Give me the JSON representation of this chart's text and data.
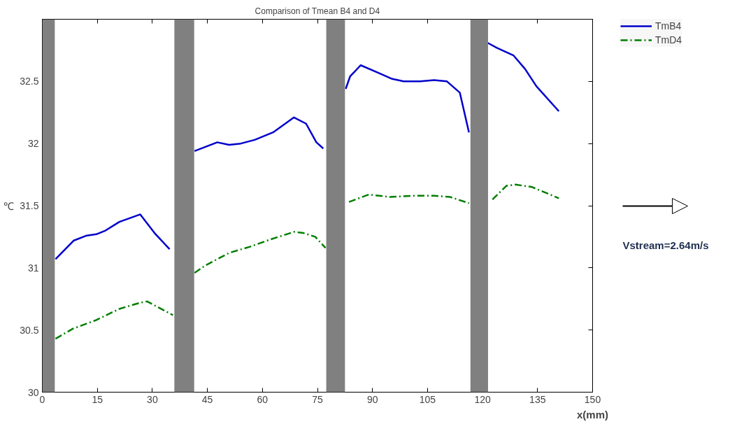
{
  "chart_data": {
    "type": "line",
    "title": "Comparison of Tmean B4 and D4",
    "xlabel": "x(mm)",
    "ylabel": "℃",
    "xlim": [
      0,
      150
    ],
    "xticks": [
      0,
      15,
      30,
      45,
      60,
      75,
      90,
      105,
      120,
      135,
      150
    ],
    "ylim": [
      30,
      33
    ],
    "yticks": [
      30,
      30.5,
      31,
      31.5,
      32,
      32.5
    ],
    "grid": false,
    "legend": "top right",
    "marker": "none",
    "bands": [
      {
        "axis": "x",
        "from": 0,
        "to": 3.4,
        "color": "#808080"
      },
      {
        "axis": "x",
        "from": 36,
        "to": 41.4,
        "color": "#808080"
      },
      {
        "axis": "x",
        "from": 77.4,
        "to": 82.5,
        "color": "#808080"
      },
      {
        "axis": "x",
        "from": 116.7,
        "to": 121.5,
        "color": "#808080"
      }
    ],
    "series": [
      {
        "name": "TmB4",
        "color": "#0000cc",
        "line_style": "solid",
        "x": [
          3.6,
          8.6,
          12.1,
          14.7,
          17.2,
          21.0,
          26.7,
          30.6,
          34.7,
          38,
          41.5,
          47.7,
          50.9,
          54.1,
          57.9,
          62.9,
          68.6,
          71.9,
          74.7,
          76.6,
          80,
          82.7,
          83.9,
          86.8,
          91.5,
          95.4,
          98.5,
          103.0,
          106.8,
          110.3,
          113.8,
          116.3,
          119,
          121.4,
          123.9,
          128.4,
          131.6,
          134.7,
          140.8
        ],
        "values": [
          31.07,
          31.22,
          31.26,
          31.27,
          31.3,
          31.37,
          31.43,
          31.28,
          31.15,
          null,
          31.94,
          32.01,
          31.99,
          32.0,
          32.03,
          32.09,
          32.21,
          32.16,
          32.01,
          31.96,
          null,
          32.44,
          32.54,
          32.63,
          32.57,
          32.52,
          32.5,
          32.5,
          32.51,
          32.5,
          32.41,
          32.09,
          null,
          32.81,
          32.77,
          32.71,
          32.6,
          32.46,
          32.26
        ]
      },
      {
        "name": "TmD4",
        "color": "#007f00",
        "line_style": "dashed",
        "x": [
          3.6,
          8.3,
          14.7,
          21.0,
          26.7,
          28.6,
          35.6,
          38,
          41.5,
          44.5,
          50.9,
          56.6,
          62.3,
          68.7,
          71.2,
          74.4,
          77.2,
          80,
          83.6,
          89.0,
          94.7,
          101.1,
          106.8,
          111.2,
          116.3,
          119,
          122.7,
          126.5,
          129.0,
          133.5,
          140.8
        ],
        "values": [
          30.43,
          30.51,
          30.58,
          30.67,
          30.72,
          30.73,
          30.62,
          null,
          30.96,
          31.02,
          31.12,
          31.17,
          31.23,
          31.29,
          31.28,
          31.25,
          31.16,
          null,
          31.53,
          31.59,
          31.57,
          31.58,
          31.58,
          31.57,
          31.52,
          null,
          31.55,
          31.66,
          31.67,
          31.65,
          31.56
        ]
      }
    ],
    "annotations": [
      "Vstream=2.64m/s"
    ]
  }
}
